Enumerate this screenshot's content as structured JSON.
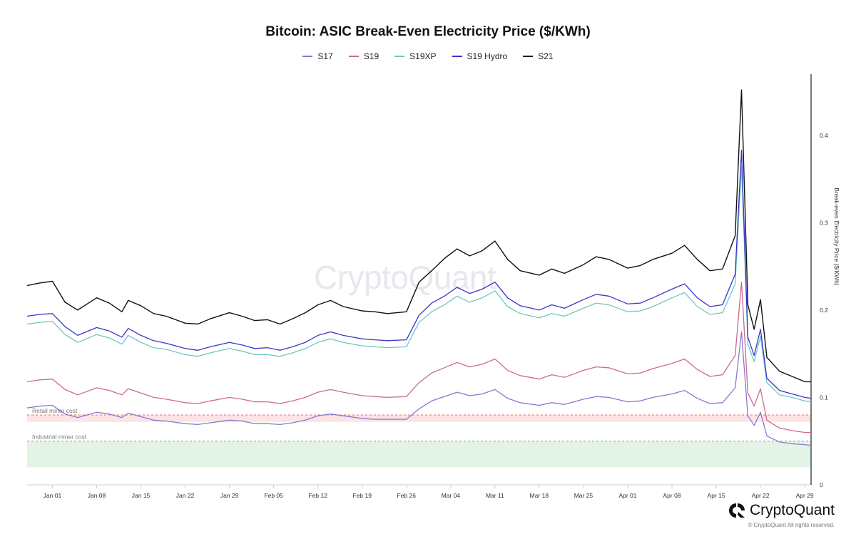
{
  "chart_title": "Bitcoin: ASIC Break-Even Electricity Price ($/KWh)",
  "watermark": "CryptoQuant",
  "brand": {
    "name": "CryptoQuant",
    "copyright": "© CryptoQuant All rights reserved."
  },
  "colors": {
    "S17": "#8878d0",
    "S19": "#cd6a8c",
    "S19XP": "#6fc6c4",
    "S19 Hydro": "#3a35c8",
    "S21": "#111111",
    "retail_band": "#fde3e3",
    "retail_line": "#e07070",
    "industrial_band": "#e3f4e6",
    "industrial_line": "#7aa684"
  },
  "chart_data": {
    "type": "line",
    "title": "Bitcoin: ASIC Break-Even Electricity Price ($/KWh)",
    "xlabel": "",
    "ylabel": "Break-even Electricity Price ($/KWh)",
    "y_axis_side": "right",
    "ylim": [
      0,
      0.47
    ],
    "y_ticks": [
      "0",
      "0.1",
      "0.2",
      "0.3",
      "0.4"
    ],
    "y_tick_values": [
      0,
      0.1,
      0.2,
      0.3,
      0.4
    ],
    "xlim": [
      "2023-12-28",
      "2024-04-30"
    ],
    "x_ticks": [
      {
        "date": "2024-01-01",
        "label": "Jan 01"
      },
      {
        "date": "2024-01-08",
        "label": "Jan 08"
      },
      {
        "date": "2024-01-15",
        "label": "Jan 15"
      },
      {
        "date": "2024-01-22",
        "label": "Jan 22"
      },
      {
        "date": "2024-01-29",
        "label": "Jan 29"
      },
      {
        "date": "2024-02-05",
        "label": "Feb 05"
      },
      {
        "date": "2024-02-12",
        "label": "Feb 12"
      },
      {
        "date": "2024-02-19",
        "label": "Feb 19"
      },
      {
        "date": "2024-02-26",
        "label": "Feb 26"
      },
      {
        "date": "2024-03-04",
        "label": "Mar 04"
      },
      {
        "date": "2024-03-11",
        "label": "Mar 11"
      },
      {
        "date": "2024-03-18",
        "label": "Mar 18"
      },
      {
        "date": "2024-03-25",
        "label": "Mar 25"
      },
      {
        "date": "2024-04-01",
        "label": "Apr 01"
      },
      {
        "date": "2024-04-08",
        "label": "Apr 08"
      },
      {
        "date": "2024-04-15",
        "label": "Apr 15"
      },
      {
        "date": "2024-04-22",
        "label": "Apr 22"
      },
      {
        "date": "2024-04-29",
        "label": "Apr 29"
      }
    ],
    "grid": false,
    "legend_placement": "top-center",
    "x": [
      "2023-12-28",
      "2023-12-30",
      "2024-01-01",
      "2024-01-03",
      "2024-01-05",
      "2024-01-08",
      "2024-01-10",
      "2024-01-12",
      "2024-01-13",
      "2024-01-15",
      "2024-01-17",
      "2024-01-19",
      "2024-01-22",
      "2024-01-24",
      "2024-01-26",
      "2024-01-29",
      "2024-01-31",
      "2024-02-02",
      "2024-02-04",
      "2024-02-06",
      "2024-02-08",
      "2024-02-10",
      "2024-02-12",
      "2024-02-14",
      "2024-02-16",
      "2024-02-19",
      "2024-02-21",
      "2024-02-23",
      "2024-02-26",
      "2024-02-28",
      "2024-03-01",
      "2024-03-03",
      "2024-03-05",
      "2024-03-07",
      "2024-03-09",
      "2024-03-11",
      "2024-03-13",
      "2024-03-15",
      "2024-03-18",
      "2024-03-20",
      "2024-03-22",
      "2024-03-25",
      "2024-03-27",
      "2024-03-29",
      "2024-04-01",
      "2024-04-03",
      "2024-04-05",
      "2024-04-08",
      "2024-04-10",
      "2024-04-12",
      "2024-04-14",
      "2024-04-16",
      "2024-04-18",
      "2024-04-19",
      "2024-04-20",
      "2024-04-21",
      "2024-04-22",
      "2024-04-23",
      "2024-04-25",
      "2024-04-27",
      "2024-04-29",
      "2024-04-30"
    ],
    "series": [
      {
        "name": "S21",
        "values": [
          0.228,
          0.231,
          0.233,
          0.209,
          0.2,
          0.214,
          0.208,
          0.198,
          0.211,
          0.205,
          0.196,
          0.193,
          0.185,
          0.184,
          0.19,
          0.197,
          0.193,
          0.188,
          0.189,
          0.184,
          0.19,
          0.197,
          0.206,
          0.211,
          0.204,
          0.199,
          0.198,
          0.196,
          0.198,
          0.232,
          0.245,
          0.259,
          0.27,
          0.262,
          0.268,
          0.279,
          0.258,
          0.245,
          0.24,
          0.247,
          0.242,
          0.252,
          0.261,
          0.258,
          0.248,
          0.251,
          0.258,
          0.265,
          0.274,
          0.258,
          0.245,
          0.247,
          0.285,
          0.452,
          0.206,
          0.178,
          0.212,
          0.146,
          0.13,
          0.124,
          0.118,
          0.118
        ]
      },
      {
        "name": "S19 Hydro",
        "values": [
          0.193,
          0.195,
          0.196,
          0.181,
          0.171,
          0.18,
          0.176,
          0.169,
          0.179,
          0.171,
          0.165,
          0.162,
          0.156,
          0.154,
          0.158,
          0.163,
          0.16,
          0.156,
          0.157,
          0.154,
          0.158,
          0.163,
          0.171,
          0.175,
          0.171,
          0.167,
          0.166,
          0.165,
          0.166,
          0.194,
          0.208,
          0.216,
          0.226,
          0.219,
          0.224,
          0.232,
          0.214,
          0.205,
          0.2,
          0.206,
          0.202,
          0.212,
          0.218,
          0.216,
          0.207,
          0.208,
          0.214,
          0.224,
          0.23,
          0.214,
          0.204,
          0.206,
          0.241,
          0.383,
          0.169,
          0.148,
          0.178,
          0.122,
          0.108,
          0.104,
          0.1,
          0.099
        ]
      },
      {
        "name": "S19XP",
        "values": [
          0.184,
          0.186,
          0.187,
          0.172,
          0.163,
          0.172,
          0.168,
          0.161,
          0.171,
          0.163,
          0.157,
          0.155,
          0.149,
          0.147,
          0.151,
          0.156,
          0.153,
          0.149,
          0.149,
          0.147,
          0.151,
          0.156,
          0.163,
          0.167,
          0.163,
          0.159,
          0.158,
          0.157,
          0.158,
          0.186,
          0.198,
          0.206,
          0.216,
          0.209,
          0.214,
          0.222,
          0.204,
          0.196,
          0.191,
          0.196,
          0.193,
          0.202,
          0.208,
          0.206,
          0.198,
          0.199,
          0.204,
          0.214,
          0.22,
          0.204,
          0.195,
          0.197,
          0.23,
          0.365,
          0.161,
          0.141,
          0.17,
          0.117,
          0.103,
          0.1,
          0.096,
          0.095
        ]
      },
      {
        "name": "S19",
        "values": [
          0.118,
          0.12,
          0.121,
          0.109,
          0.103,
          0.111,
          0.108,
          0.103,
          0.11,
          0.105,
          0.1,
          0.098,
          0.094,
          0.093,
          0.096,
          0.1,
          0.098,
          0.095,
          0.095,
          0.093,
          0.096,
          0.1,
          0.106,
          0.109,
          0.106,
          0.102,
          0.101,
          0.1,
          0.101,
          0.117,
          0.128,
          0.134,
          0.14,
          0.135,
          0.138,
          0.144,
          0.131,
          0.125,
          0.121,
          0.126,
          0.123,
          0.131,
          0.135,
          0.134,
          0.127,
          0.128,
          0.133,
          0.139,
          0.144,
          0.132,
          0.124,
          0.126,
          0.148,
          0.232,
          0.105,
          0.09,
          0.11,
          0.074,
          0.065,
          0.062,
          0.06,
          0.06
        ]
      },
      {
        "name": "S17",
        "values": [
          0.088,
          0.09,
          0.091,
          0.081,
          0.077,
          0.083,
          0.081,
          0.077,
          0.082,
          0.078,
          0.074,
          0.073,
          0.07,
          0.069,
          0.071,
          0.074,
          0.073,
          0.07,
          0.07,
          0.069,
          0.071,
          0.074,
          0.079,
          0.081,
          0.079,
          0.076,
          0.075,
          0.075,
          0.075,
          0.087,
          0.096,
          0.101,
          0.106,
          0.102,
          0.104,
          0.109,
          0.099,
          0.094,
          0.091,
          0.094,
          0.092,
          0.098,
          0.101,
          0.1,
          0.095,
          0.096,
          0.1,
          0.104,
          0.108,
          0.099,
          0.093,
          0.094,
          0.111,
          0.175,
          0.079,
          0.068,
          0.083,
          0.056,
          0.049,
          0.047,
          0.046,
          0.045
        ]
      }
    ],
    "legend_order": [
      "S17",
      "S19",
      "S19XP",
      "S19 Hydro",
      "S21"
    ],
    "reference_bands": [
      {
        "label": "Retail miner cost",
        "line_value": 0.08,
        "band": [
          0.072,
          0.08
        ],
        "color_key": "retail"
      },
      {
        "label": "Industrial miner cost",
        "line_value": 0.05,
        "band": [
          0.02,
          0.05
        ],
        "color_key": "industrial"
      }
    ]
  }
}
